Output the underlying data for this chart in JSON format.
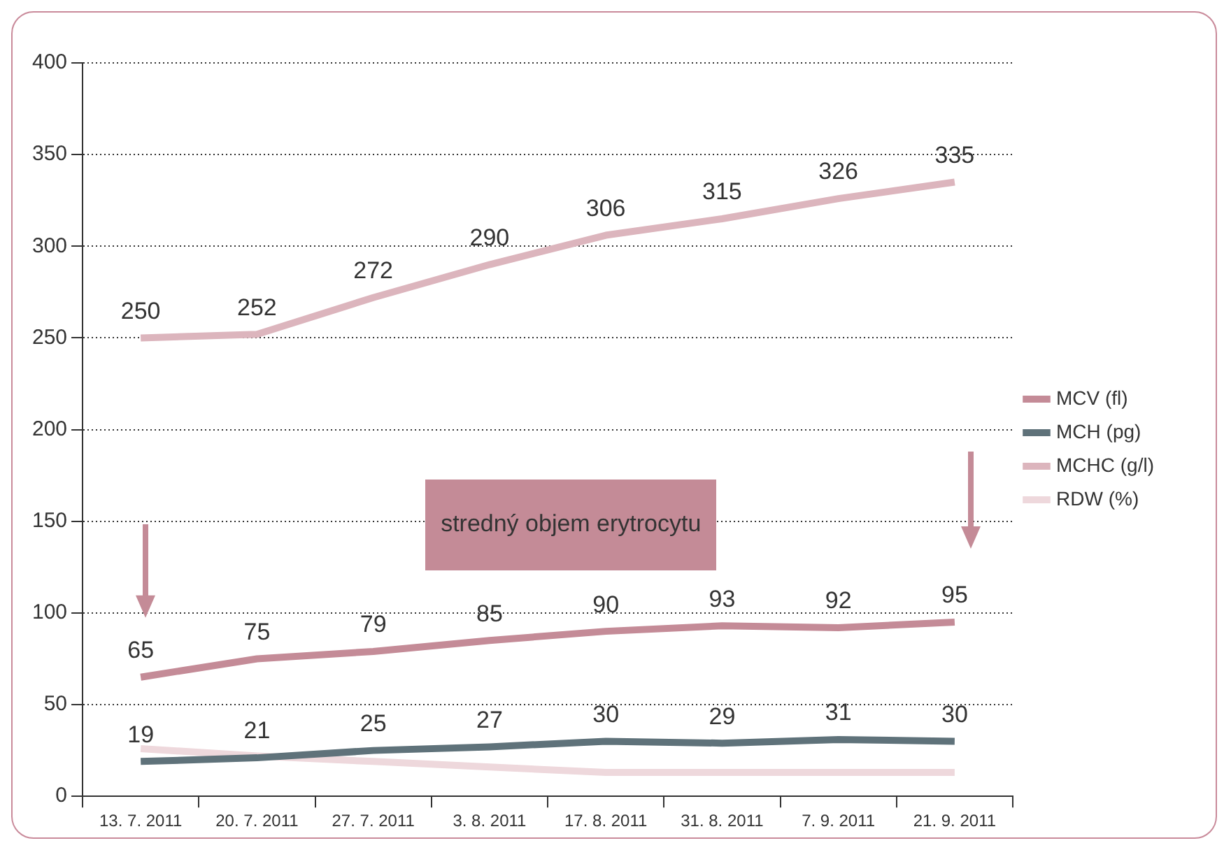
{
  "chart_data": {
    "type": "line",
    "categories": [
      "13. 7. 2011",
      "20. 7. 2011",
      "27. 7. 2011",
      "3. 8. 2011",
      "17. 8. 2011",
      "31. 8. 2011",
      "7. 9. 2011",
      "21. 9. 2011"
    ],
    "series": [
      {
        "name": "MCV (fl)",
        "color": "#c48b97",
        "values": [
          65,
          75,
          79,
          85,
          90,
          93,
          92,
          95
        ],
        "value_labels": [
          "65",
          "75",
          "79",
          "85",
          "90",
          "93",
          "92",
          "95"
        ]
      },
      {
        "name": "MCH (pg)",
        "color": "#5f727a",
        "values": [
          19,
          21,
          25,
          27,
          30,
          29,
          31,
          30
        ],
        "value_labels": [
          "19",
          "21",
          "25",
          "27",
          "30",
          "29",
          "31",
          "30"
        ]
      },
      {
        "name": "MCHC (g/l)",
        "color": "#dcb5bd",
        "values": [
          250,
          252,
          272,
          290,
          306,
          315,
          326,
          335
        ],
        "value_labels": [
          "250",
          "252",
          "272",
          "290",
          "306",
          "315",
          "326",
          "335"
        ]
      },
      {
        "name": "RDW (%)",
        "color": "#eed8dc",
        "values": [
          26,
          22,
          19,
          16,
          13,
          13,
          13,
          13
        ]
      }
    ],
    "ylim": [
      0,
      400
    ],
    "yticks": [
      0,
      50,
      100,
      150,
      200,
      250,
      300,
      350,
      400
    ],
    "grid": "y",
    "legend": "right",
    "marker": "none",
    "annotations": [
      "stredný objem erytrocytu"
    ]
  }
}
